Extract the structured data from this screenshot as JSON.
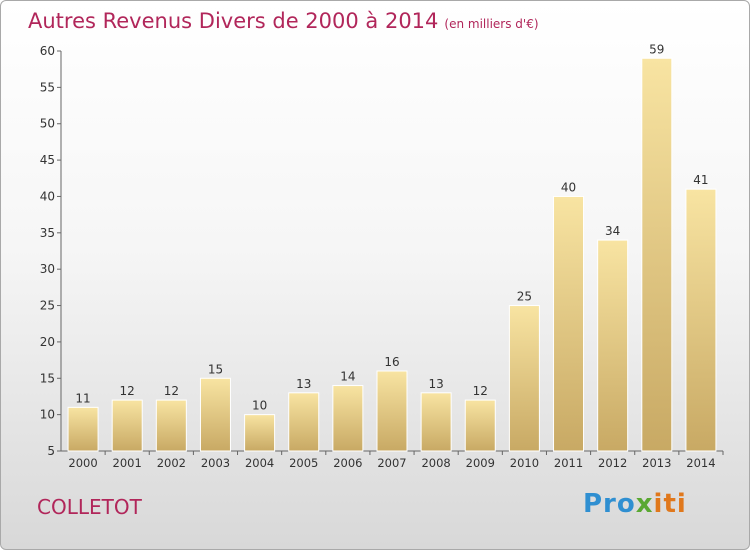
{
  "header": {
    "title": "Autres Revenus Divers de 2000 à 2014",
    "unit": "(en milliers d'€)"
  },
  "commune": "COLLETOT",
  "logo": {
    "part1": "Pro",
    "part2": "x",
    "part3": "iti"
  },
  "colors": {
    "title": "#b1265a",
    "bar_light": "#f7e29f",
    "bar_dark": "#c9ab65",
    "axis": "#666666"
  },
  "chart_data": {
    "type": "bar",
    "title": "Autres Revenus Divers de 2000 à 2014",
    "subtitle": "(en milliers d'€)",
    "xlabel": "",
    "ylabel": "",
    "categories": [
      "2000",
      "2001",
      "2002",
      "2003",
      "2004",
      "2005",
      "2006",
      "2007",
      "2008",
      "2009",
      "2010",
      "2011",
      "2012",
      "2013",
      "2014"
    ],
    "values": [
      11,
      12,
      12,
      15,
      10,
      13,
      14,
      16,
      13,
      12,
      25,
      40,
      34,
      59,
      41
    ],
    "ylim": [
      5,
      60
    ],
    "yticks": [
      5,
      10,
      15,
      20,
      25,
      30,
      35,
      40,
      45,
      50,
      55,
      60
    ],
    "grid": false,
    "data_labels": true
  }
}
